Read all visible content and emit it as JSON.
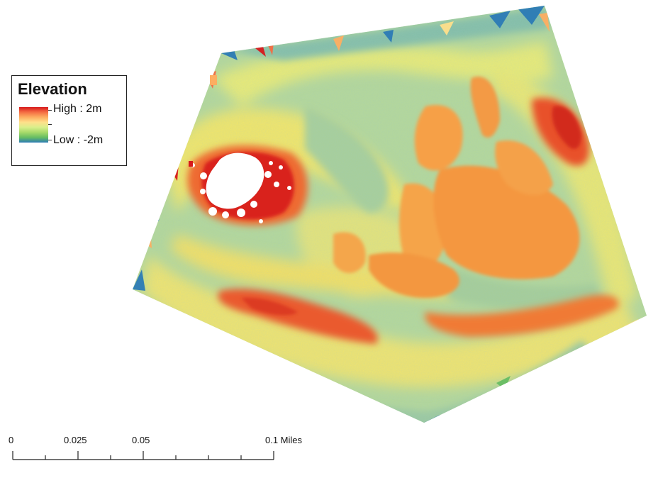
{
  "legend": {
    "title": "Elevation",
    "high_label": "High : 2m",
    "low_label": "Low : -2m",
    "ramp_colors": [
      "#d7191c",
      "#f46d43",
      "#fdae61",
      "#fee08b",
      "#d9ef8b",
      "#a6d96a",
      "#66bd63",
      "#2c7bb6"
    ]
  },
  "scale_bar": {
    "labels": [
      "0",
      "0.025",
      "0.05",
      "0.1 Miles"
    ]
  },
  "palette": {
    "low": "#2c7bb6",
    "mid": "#abd9a0",
    "yellow": "#f5ec6a",
    "orange": "#f7a03c",
    "high": "#d7191c",
    "nodata": "#ffffff"
  }
}
